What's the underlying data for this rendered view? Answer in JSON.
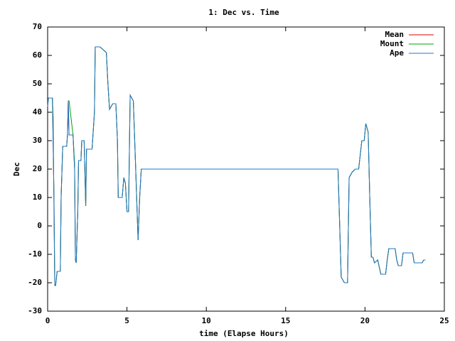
{
  "chart_data": {
    "type": "line",
    "title": "1: Dec vs. Time",
    "x_label": "time (Elapse Hours)",
    "y_label": "Dec",
    "xlim": [
      0,
      25
    ],
    "xticks": [
      0,
      5,
      10,
      15,
      20,
      25
    ],
    "ylim": [
      -30,
      70
    ],
    "yticks": [
      -30,
      -20,
      -10,
      0,
      10,
      20,
      30,
      40,
      50,
      60,
      70
    ],
    "grid": false,
    "legend": "top-right",
    "series": [
      {
        "name": "Mean",
        "color": "#e00000",
        "x": [
          0,
          0.05,
          0.3,
          0.35,
          0.4,
          0.45,
          0.5,
          0.6,
          0.8,
          0.85,
          0.95,
          1.2,
          1.25,
          1.3,
          1.35,
          1.6,
          1.7,
          1.75,
          1.8,
          1.9,
          1.95,
          2.1,
          2.15,
          2.3,
          2.4,
          2.45,
          2.8,
          2.95,
          3.0,
          3.3,
          3.5,
          3.7,
          3.8,
          3.9,
          4.1,
          4.3,
          4.4,
          4.45,
          4.7,
          4.8,
          4.9,
          5.0,
          5.1,
          5.2,
          5.4,
          5.55,
          5.7,
          5.8,
          5.9,
          18.3,
          18.5,
          18.7,
          18.9,
          19.0,
          19.2,
          19.4,
          19.6,
          19.7,
          19.8,
          19.95,
          20.05,
          20.2,
          20.3,
          20.4,
          20.5,
          20.6,
          20.8,
          21.0,
          21.3,
          21.4,
          21.5,
          21.9,
          22.0,
          22.1,
          22.3,
          22.4,
          23.0,
          23.1,
          23.6,
          23.7,
          23.8
        ],
        "values": [
          42,
          45,
          45,
          28,
          10,
          -21,
          -21,
          -16,
          -16,
          10,
          28,
          28,
          32,
          44,
          32,
          32,
          20,
          -12,
          -13,
          5,
          23,
          23,
          30,
          30,
          7,
          27,
          27,
          40,
          63,
          63,
          62,
          61,
          50,
          41,
          43,
          43,
          30,
          10,
          10,
          17,
          15,
          5,
          5,
          46,
          44,
          20,
          -5,
          10,
          20,
          20,
          -18,
          -20,
          -20,
          17,
          19,
          20,
          20,
          25,
          30,
          30,
          36,
          33,
          10,
          -11,
          -11,
          -13,
          -12,
          -17,
          -17,
          -12,
          -8,
          -8,
          -12,
          -14,
          -14,
          -9.5,
          -9.5,
          -13,
          -13,
          -12,
          -12
        ]
      },
      {
        "name": "Mount",
        "color": "#00a000",
        "x": [
          0,
          0.05,
          0.3,
          0.35,
          0.4,
          0.45,
          0.5,
          0.6,
          0.8,
          0.85,
          0.95,
          1.2,
          1.25,
          1.3,
          1.35,
          1.6,
          1.7,
          1.75,
          1.8,
          1.9,
          1.95,
          2.1,
          2.15,
          2.3,
          2.4,
          2.45,
          2.8,
          2.95,
          3.0,
          3.3,
          3.5,
          3.7,
          3.8,
          3.9,
          4.1,
          4.3,
          4.4,
          4.45,
          4.7,
          4.8,
          4.9,
          5.0,
          5.1,
          5.2,
          5.4,
          5.55,
          5.7,
          5.8,
          5.9,
          18.3,
          18.5,
          18.7,
          18.9,
          19.0,
          19.2,
          19.4,
          19.6,
          19.7,
          19.8,
          19.95,
          20.05,
          20.2,
          20.3,
          20.4,
          20.5,
          20.6,
          20.8,
          21.0,
          21.3,
          21.4,
          21.5,
          21.9,
          22.0,
          22.1,
          22.3,
          22.4,
          23.0,
          23.1,
          23.6,
          23.7,
          23.8
        ],
        "values": [
          42,
          45,
          45,
          38,
          5,
          -21,
          -21,
          -16,
          -16,
          10,
          28,
          28,
          32,
          44,
          44,
          32,
          22,
          -12,
          -13,
          5,
          23,
          23,
          30,
          30,
          7,
          27,
          27,
          40,
          63,
          63,
          62,
          61,
          50,
          41,
          43,
          43,
          30,
          10,
          10,
          17,
          15,
          5,
          5,
          46,
          44,
          20,
          -5,
          10,
          20,
          20,
          -18,
          -20,
          -20,
          17,
          19,
          20,
          20,
          25,
          30,
          30,
          36,
          33,
          10,
          -11,
          -11,
          -13,
          -12,
          -17,
          -17,
          -12,
          -8,
          -8,
          -12,
          -14,
          -14,
          -9.5,
          -9.5,
          -13,
          -13,
          -12,
          -12
        ]
      },
      {
        "name": "Ape",
        "color": "#1e78c8",
        "x": [
          0,
          0.05,
          0.3,
          0.35,
          0.4,
          0.45,
          0.5,
          0.6,
          0.8,
          0.85,
          0.95,
          1.2,
          1.25,
          1.3,
          1.35,
          1.6,
          1.7,
          1.75,
          1.8,
          1.9,
          1.95,
          2.1,
          2.15,
          2.3,
          2.4,
          2.45,
          2.8,
          2.95,
          3.0,
          3.3,
          3.5,
          3.7,
          3.8,
          3.9,
          4.1,
          4.3,
          4.4,
          4.45,
          4.7,
          4.8,
          4.9,
          5.0,
          5.1,
          5.2,
          5.4,
          5.55,
          5.7,
          5.8,
          5.9,
          18.3,
          18.5,
          18.7,
          18.9,
          19.0,
          19.2,
          19.4,
          19.6,
          19.7,
          19.8,
          19.95,
          20.05,
          20.2,
          20.3,
          20.4,
          20.5,
          20.6,
          20.8,
          21.0,
          21.3,
          21.4,
          21.5,
          21.9,
          22.0,
          22.1,
          22.3,
          22.4,
          23.0,
          23.1,
          23.6,
          23.7,
          23.8
        ],
        "values": [
          42,
          45,
          45,
          28,
          10,
          -21,
          -21,
          -16,
          -16,
          10,
          28,
          28,
          32,
          44,
          32,
          32,
          20,
          -12,
          -13,
          5,
          23,
          23,
          30,
          30,
          7,
          27,
          27,
          40,
          63,
          63,
          62,
          61,
          50,
          41,
          43,
          43,
          30,
          10,
          10,
          17,
          15,
          5,
          5,
          46,
          44,
          20,
          -5,
          10,
          20,
          20,
          -18,
          -20,
          -20,
          17,
          19,
          20,
          20,
          25,
          30,
          30,
          36,
          33,
          10,
          -11,
          -11,
          -13,
          -12,
          -17,
          -17,
          -12,
          -8,
          -8,
          -12,
          -14,
          -14,
          -9.5,
          -9.5,
          -13,
          -13,
          -12,
          -12
        ]
      }
    ]
  }
}
